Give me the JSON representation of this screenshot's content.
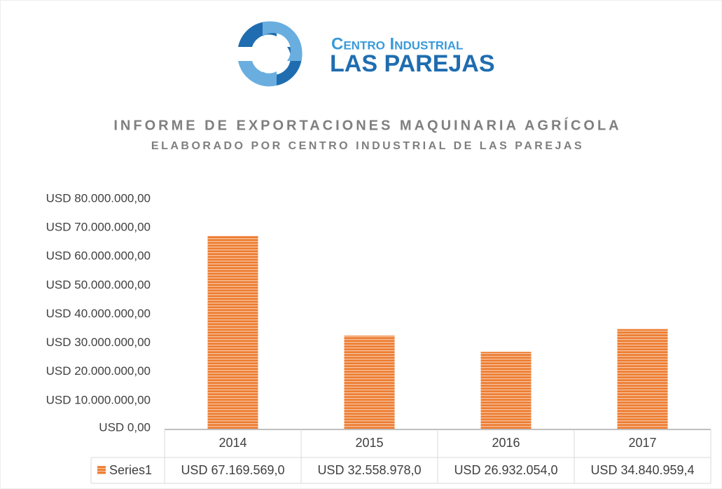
{
  "logo": {
    "line1": "Centro Industrial",
    "line2": "LAS PAREJAS"
  },
  "chart_data": {
    "type": "bar",
    "title": "INFORME DE EXPORTACIONES MAQUINARIA AGRÍCOLA",
    "subtitle": "ELABORADO POR CENTRO INDUSTRIAL DE LAS PAREJAS",
    "categories": [
      "2014",
      "2015",
      "2016",
      "2017"
    ],
    "series": [
      {
        "name": "Series1",
        "color": "#ed7d31",
        "values": [
          67169569.0,
          32558978.0,
          26932054.0,
          34840959.4
        ],
        "value_labels": [
          "USD 67.169.569,0",
          "USD 32.558.978,0",
          "USD 26.932.054,0",
          "USD 34.840.959,4"
        ]
      }
    ],
    "ylim": [
      0,
      80000000
    ],
    "yticks": [
      {
        "value": 0,
        "label": "USD 0,00"
      },
      {
        "value": 10000000,
        "label": "USD 10.000.000,00"
      },
      {
        "value": 20000000,
        "label": "USD 20.000.000,00"
      },
      {
        "value": 30000000,
        "label": "USD 30.000.000,00"
      },
      {
        "value": 40000000,
        "label": "USD 40.000.000,00"
      },
      {
        "value": 50000000,
        "label": "USD 50.000.000,00"
      },
      {
        "value": 60000000,
        "label": "USD 60.000.000,00"
      },
      {
        "value": 70000000,
        "label": "USD 70.000.000,00"
      },
      {
        "value": 80000000,
        "label": "USD 80.000.000,00"
      }
    ],
    "grid": false,
    "data_table": true
  }
}
